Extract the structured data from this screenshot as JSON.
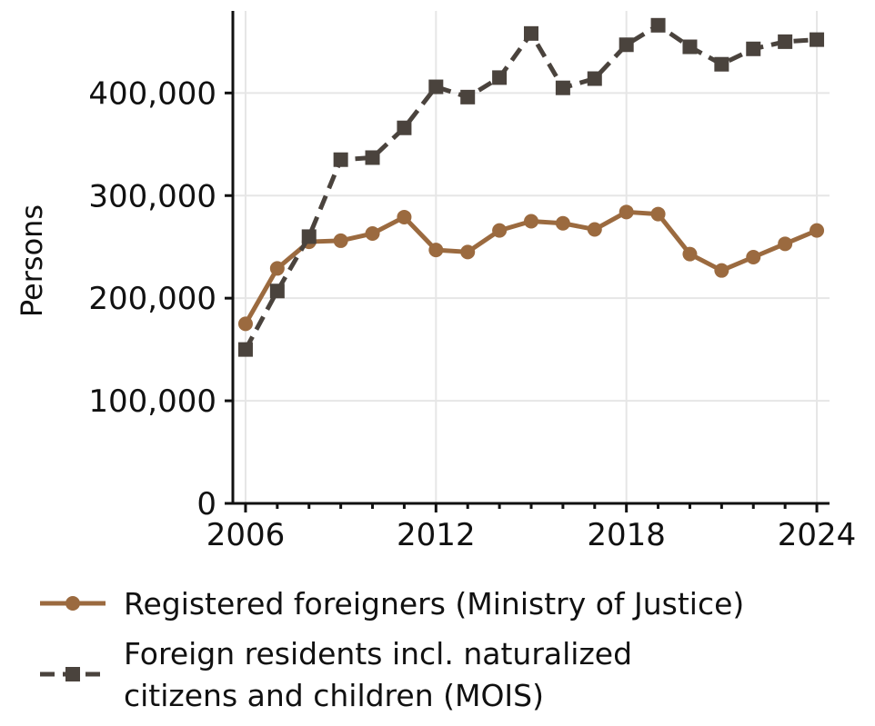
{
  "chart_data": {
    "type": "line",
    "title": "",
    "xlabel": "",
    "ylabel": "Persons",
    "xlim": [
      2005.6,
      2024.4
    ],
    "ylim": [
      0,
      480000
    ],
    "x": [
      2006,
      2007,
      2008,
      2009,
      2010,
      2011,
      2012,
      2013,
      2014,
      2015,
      2016,
      2017,
      2018,
      2019,
      2020,
      2021,
      2022,
      2023,
      2024
    ],
    "x_ticks_major": [
      2006,
      2012,
      2018,
      2024
    ],
    "x_tick_labels": [
      "2006",
      "2012",
      "2018",
      "2024"
    ],
    "y_ticks": [
      0,
      100000,
      200000,
      300000,
      400000
    ],
    "y_tick_labels": [
      "0",
      "100,000",
      "200,000",
      "300,000",
      "400,000"
    ],
    "grid": true,
    "legend_position": "bottom",
    "series": [
      {
        "name": "Registered foreigners (Ministry of Justice)",
        "color": "#9B6A3F",
        "line_style": "solid",
        "marker": "circle",
        "values": [
          175000,
          229000,
          255000,
          256000,
          263000,
          279000,
          247000,
          245000,
          266000,
          275000,
          273000,
          267000,
          284000,
          282000,
          243000,
          227000,
          240000,
          253000,
          266000
        ]
      },
      {
        "name_lines": [
          "Foreign residents incl. naturalized",
          "citizens and children (MOIS)"
        ],
        "color": "#4A433D",
        "line_style": "dashed",
        "marker": "square",
        "values": [
          150000,
          207000,
          260000,
          335000,
          337000,
          366000,
          406000,
          396000,
          415000,
          458000,
          405000,
          414000,
          447000,
          466000,
          445000,
          428000,
          443000,
          450000,
          452000
        ]
      }
    ]
  }
}
